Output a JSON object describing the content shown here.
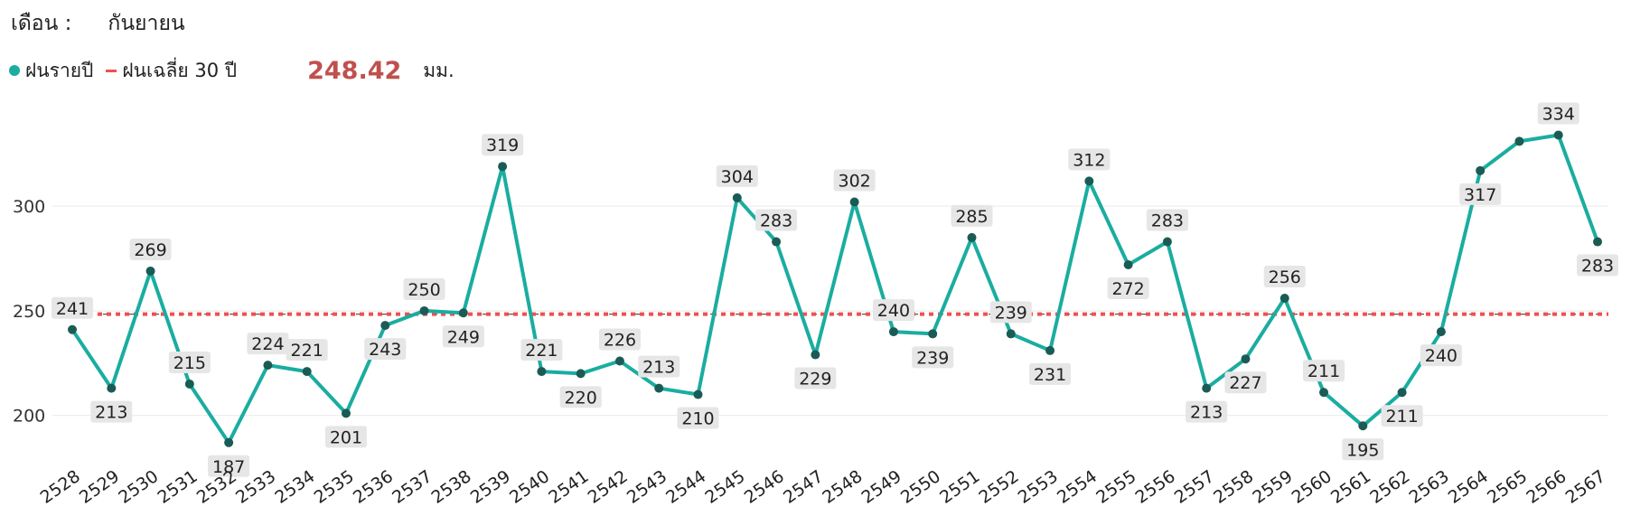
{
  "header": {
    "month_label": "เดือน :",
    "month_value": "กันยายน"
  },
  "legend": {
    "annual_label": "ฝนรายปี",
    "average_label": "ฝนเฉลี่ย 30 ปี",
    "average_value": "248.42",
    "unit": "มม."
  },
  "colors": {
    "series": "#1aada0",
    "point": "#1a5c55",
    "average": "#f04f4f",
    "label_bg": "#e6e6e6"
  },
  "chart_data": {
    "type": "line",
    "x": [
      "2528",
      "2529",
      "2530",
      "2531",
      "2532",
      "2533",
      "2534",
      "2535",
      "2536",
      "2537",
      "2538",
      "2539",
      "2540",
      "2541",
      "2542",
      "2543",
      "2544",
      "2545",
      "2546",
      "2547",
      "2548",
      "2549",
      "2550",
      "2551",
      "2552",
      "2553",
      "2554",
      "2555",
      "2556",
      "2557",
      "2558",
      "2559",
      "2560",
      "2561",
      "2562",
      "2563",
      "2564",
      "2565",
      "2566",
      "2567"
    ],
    "series": [
      {
        "name": "ฝนรายปี",
        "values": [
          241,
          213,
          269,
          215,
          187,
          224,
          221,
          201,
          243,
          250,
          249,
          319,
          221,
          220,
          226,
          213,
          210,
          304,
          283,
          229,
          302,
          240,
          239,
          285,
          239,
          231,
          312,
          272,
          283,
          213,
          227,
          256,
          211,
          195,
          211,
          240,
          317,
          331,
          334,
          283
        ],
        "labels": [
          "241",
          "213",
          "269",
          "215",
          "187",
          "224",
          "221",
          "201",
          "243",
          "250",
          "249",
          "319",
          "221",
          "220",
          "226",
          "213",
          "210",
          "304",
          "283",
          "229",
          "302",
          "240",
          "239",
          "285",
          "239",
          "231",
          "312",
          "272",
          "283",
          "213",
          "227",
          "256",
          "211",
          "195",
          "211",
          "240",
          "317",
          "",
          "334",
          "283"
        ]
      }
    ],
    "reference_line": {
      "name": "ฝนเฉลี่ย 30 ปี",
      "value": 248.42
    },
    "yticks": [
      "200",
      "250",
      "300"
    ],
    "yticks_values": [
      200,
      250,
      300
    ],
    "ylim": [
      180,
      345
    ],
    "grid": true,
    "legend_position": "top-left"
  }
}
